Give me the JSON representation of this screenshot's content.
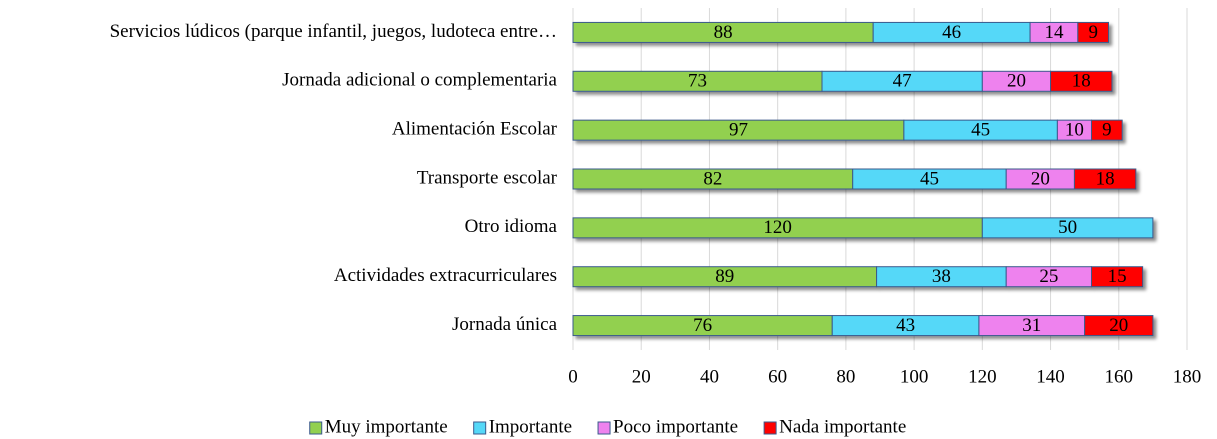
{
  "chart_data": {
    "type": "stacked-bar-horizontal",
    "categories": [
      "Servicios lúdicos (parque infantil, juegos, ludoteca entre…",
      "Jornada adicional o complementaria",
      "Alimentación Escolar",
      "Transporte escolar",
      "Otro idioma",
      "Actividades extracurriculares",
      "Jornada única"
    ],
    "series": [
      {
        "name": "Muy importante",
        "color": "#92d050",
        "values": [
          88,
          73,
          97,
          82,
          120,
          89,
          76
        ]
      },
      {
        "name": "Importante",
        "color": "#55d8f8",
        "values": [
          46,
          47,
          45,
          45,
          50,
          38,
          43
        ]
      },
      {
        "name": "Poco importante",
        "color": "#ee82ee",
        "values": [
          14,
          20,
          10,
          20,
          null,
          25,
          31
        ]
      },
      {
        "name": "Nada importante",
        "color": "#ff0000",
        "values": [
          9,
          18,
          9,
          18,
          null,
          15,
          20
        ]
      }
    ],
    "xlim": [
      0,
      180
    ],
    "xticks": [
      0,
      20,
      40,
      60,
      80,
      100,
      120,
      140,
      160,
      180
    ],
    "grid": true,
    "legend": "bottom"
  }
}
